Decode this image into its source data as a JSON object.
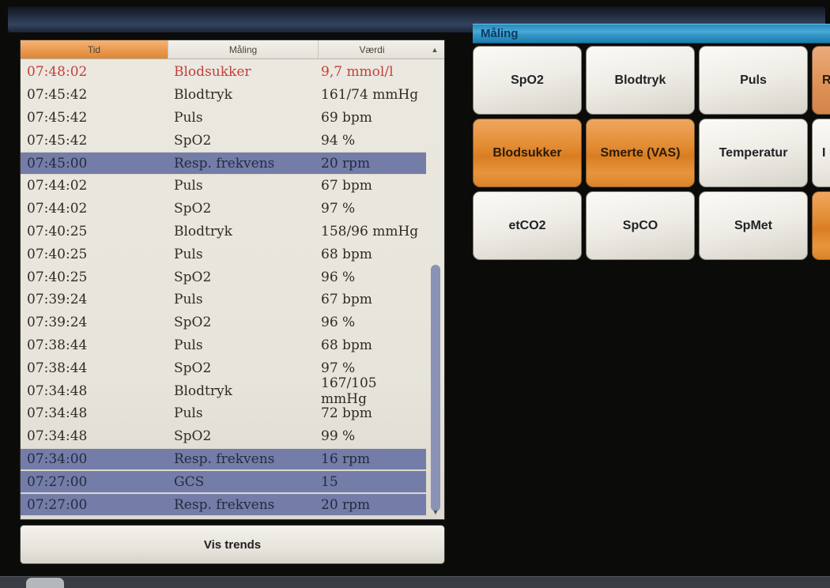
{
  "log_panel": {
    "columns": {
      "time": "Tid",
      "measurement": "Måling",
      "value": "Værdi"
    },
    "rows": [
      {
        "time": "07:48:02",
        "measurement": "Blodsukker",
        "value": "9,7 mmol/l",
        "state": "alert"
      },
      {
        "time": "07:45:42",
        "measurement": "Blodtryk",
        "value": "161/74 mmHg",
        "state": "normal"
      },
      {
        "time": "07:45:42",
        "measurement": "Puls",
        "value": "69 bpm",
        "state": "normal"
      },
      {
        "time": "07:45:42",
        "measurement": "SpO2",
        "value": "94 %",
        "state": "normal"
      },
      {
        "time": "07:45:00",
        "measurement": "Resp. frekvens",
        "value": "20 rpm",
        "state": "selected"
      },
      {
        "time": "07:44:02",
        "measurement": "Puls",
        "value": "67 bpm",
        "state": "normal"
      },
      {
        "time": "07:44:02",
        "measurement": "SpO2",
        "value": "97 %",
        "state": "normal"
      },
      {
        "time": "07:40:25",
        "measurement": "Blodtryk",
        "value": "158/96 mmHg",
        "state": "normal"
      },
      {
        "time": "07:40:25",
        "measurement": "Puls",
        "value": "68 bpm",
        "state": "normal"
      },
      {
        "time": "07:40:25",
        "measurement": "SpO2",
        "value": "96 %",
        "state": "normal"
      },
      {
        "time": "07:39:24",
        "measurement": "Puls",
        "value": "67 bpm",
        "state": "normal"
      },
      {
        "time": "07:39:24",
        "measurement": "SpO2",
        "value": "96 %",
        "state": "normal"
      },
      {
        "time": "07:38:44",
        "measurement": "Puls",
        "value": "68 bpm",
        "state": "normal"
      },
      {
        "time": "07:38:44",
        "measurement": "SpO2",
        "value": "97 %",
        "state": "normal"
      },
      {
        "time": "07:34:48",
        "measurement": "Blodtryk",
        "value": "167/105 mmHg",
        "state": "normal"
      },
      {
        "time": "07:34:48",
        "measurement": "Puls",
        "value": "72 bpm",
        "state": "normal"
      },
      {
        "time": "07:34:48",
        "measurement": "SpO2",
        "value": "99 %",
        "state": "normal"
      },
      {
        "time": "07:34:00",
        "measurement": "Resp. frekvens",
        "value": "16 rpm",
        "state": "selected"
      },
      {
        "time": "07:27:00",
        "measurement": "GCS",
        "value": "15",
        "state": "selected"
      },
      {
        "time": "07:27:00",
        "measurement": "Resp. frekvens",
        "value": "20 rpm",
        "state": "selected"
      }
    ],
    "scrollbar": {
      "up_icon": "▲",
      "down_icon": "▼"
    },
    "footer_button_label": "Vis trends"
  },
  "measurement_panel": {
    "title": "Måling",
    "buttons": [
      {
        "label": "SpO2"
      },
      {
        "label": "Blodtryk"
      },
      {
        "label": "Puls"
      },
      {
        "label": "R"
      },
      {
        "label": "Blodsukker"
      },
      {
        "label": "Smerte (VAS)"
      },
      {
        "label": "Temperatur"
      },
      {
        "label": "I"
      },
      {
        "label": "etCO2"
      },
      {
        "label": "SpCO"
      },
      {
        "label": "SpMet"
      },
      {
        "label": ""
      }
    ]
  },
  "colors": {
    "header_accent_orange": "#e08c3e",
    "selected_row_blue": "#747da8",
    "alert_red": "#c2403a",
    "title_bar_blue": "#2f95c5",
    "button_orange": "#e18a33",
    "scroll_thumb": "#8a92b6"
  }
}
